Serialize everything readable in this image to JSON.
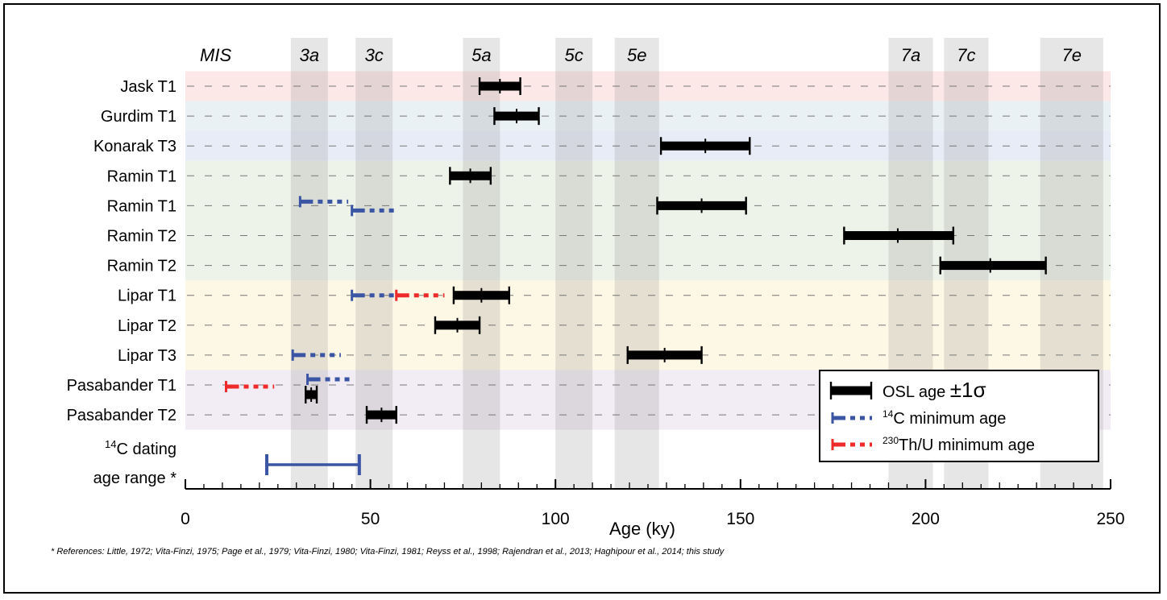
{
  "chart_data": {
    "type": "range",
    "xlabel": "Age (ky)",
    "xlim": [
      0,
      250
    ],
    "x_ticks": [
      0,
      50,
      100,
      150,
      200,
      250
    ],
    "mis_header": "MIS",
    "mis_stages": [
      {
        "label": "3a",
        "start": 28.5,
        "end": 38.5
      },
      {
        "label": "3c",
        "start": 46,
        "end": 56
      },
      {
        "label": "5a",
        "start": 75,
        "end": 85
      },
      {
        "label": "5c",
        "start": 100,
        "end": 110
      },
      {
        "label": "5e",
        "start": 116,
        "end": 128
      },
      {
        "label": "7a",
        "start": 190,
        "end": 202
      },
      {
        "label": "7c",
        "start": 205,
        "end": 217
      },
      {
        "label": "7e",
        "start": 231,
        "end": 248
      }
    ],
    "row_groups": [
      {
        "rows": [
          0,
          0
        ],
        "color": "#fde8e8"
      },
      {
        "rows": [
          1,
          1
        ],
        "color": "#e9f1f5"
      },
      {
        "rows": [
          2,
          2
        ],
        "color": "#e8ecf6"
      },
      {
        "rows": [
          3,
          6
        ],
        "color": "#eef3e9"
      },
      {
        "rows": [
          7,
          9
        ],
        "color": "#fdf7e5"
      },
      {
        "rows": [
          10,
          11
        ],
        "color": "#f2ecf4"
      }
    ],
    "rows": [
      {
        "label": "Jask T1",
        "osl": [
          {
            "low": 79.5,
            "mean": 85,
            "high": 90.5
          }
        ],
        "c14": [],
        "thu": []
      },
      {
        "label": "Gurdim T1",
        "osl": [
          {
            "low": 83.5,
            "mean": 89.5,
            "high": 95.5
          }
        ],
        "c14": [],
        "thu": []
      },
      {
        "label": "Konarak T3",
        "osl": [
          {
            "low": 128.5,
            "mean": 140.5,
            "high": 152.5
          }
        ],
        "c14": [],
        "thu": []
      },
      {
        "label": "Ramin T1",
        "osl": [
          {
            "low": 71.5,
            "mean": 77,
            "high": 82.5
          }
        ],
        "c14": [],
        "thu": []
      },
      {
        "label": "Ramin T1",
        "osl": [
          {
            "low": 127.5,
            "mean": 139.5,
            "high": 151.5
          }
        ],
        "c14": [
          {
            "start": 31,
            "end": 44,
            "offset": -5
          },
          {
            "start": 45,
            "end": 57,
            "offset": 6
          }
        ],
        "thu": []
      },
      {
        "label": "Ramin T2",
        "osl": [
          {
            "low": 178,
            "mean": 192.5,
            "high": 207.5
          }
        ],
        "c14": [],
        "thu": []
      },
      {
        "label": "Ramin T2",
        "osl": [
          {
            "low": 204,
            "mean": 217.5,
            "high": 232.5
          }
        ],
        "c14": [],
        "thu": []
      },
      {
        "label": "Lipar T1",
        "osl": [
          {
            "low": 72.5,
            "mean": 80,
            "high": 87.5
          }
        ],
        "c14": [
          {
            "start": 45,
            "end": 57,
            "offset": 0
          }
        ],
        "thu": [
          {
            "start": 57,
            "end": 70,
            "offset": 0
          }
        ]
      },
      {
        "label": "Lipar T2",
        "osl": [
          {
            "low": 67.5,
            "mean": 73.5,
            "high": 79.5
          }
        ],
        "c14": [],
        "thu": []
      },
      {
        "label": "Lipar T3",
        "osl": [
          {
            "low": 119.5,
            "mean": 129.5,
            "high": 139.5
          }
        ],
        "c14": [
          {
            "start": 29,
            "end": 42,
            "offset": 0
          }
        ],
        "thu": []
      },
      {
        "label": "Pasabander T1",
        "osl": [
          {
            "low": 32.5,
            "mean": 34,
            "high": 35.5,
            "offset": 12
          }
        ],
        "c14": [
          {
            "start": 33,
            "end": 45,
            "offset": -7
          }
        ],
        "thu": [
          {
            "start": 11,
            "end": 24,
            "offset": 2
          }
        ]
      },
      {
        "label": "Pasabander T2",
        "osl": [
          {
            "low": 49,
            "mean": 53,
            "high": 57
          }
        ],
        "c14": [],
        "thu": []
      }
    ],
    "c14_range": {
      "label_line1_sup": "14",
      "label_line1": "C dating",
      "label_line2": "age range *",
      "start": 22,
      "end": 47
    },
    "legend": {
      "placement": "bottom-right",
      "osl_label": "OSL age ",
      "osl_sigma": "±1σ",
      "c14_sup": "14",
      "c14_label": "C minimum age",
      "thu_sup": "230",
      "thu_label": "Th/U minimum age"
    },
    "colors": {
      "osl": "#000000",
      "c14": "#3a55a4",
      "thu": "#ee2a2a",
      "mis_band": "#8f8f8f",
      "gridline": "#777777"
    },
    "footnote": "* References: Little, 1972; Vita-Finzi, 1975; Page et al., 1979; Vita-Finzi, 1980; Vita-Finzi, 1981; Reyss et al., 1998; Rajendran et al., 2013; Haghipour et al., 2014; this study"
  }
}
